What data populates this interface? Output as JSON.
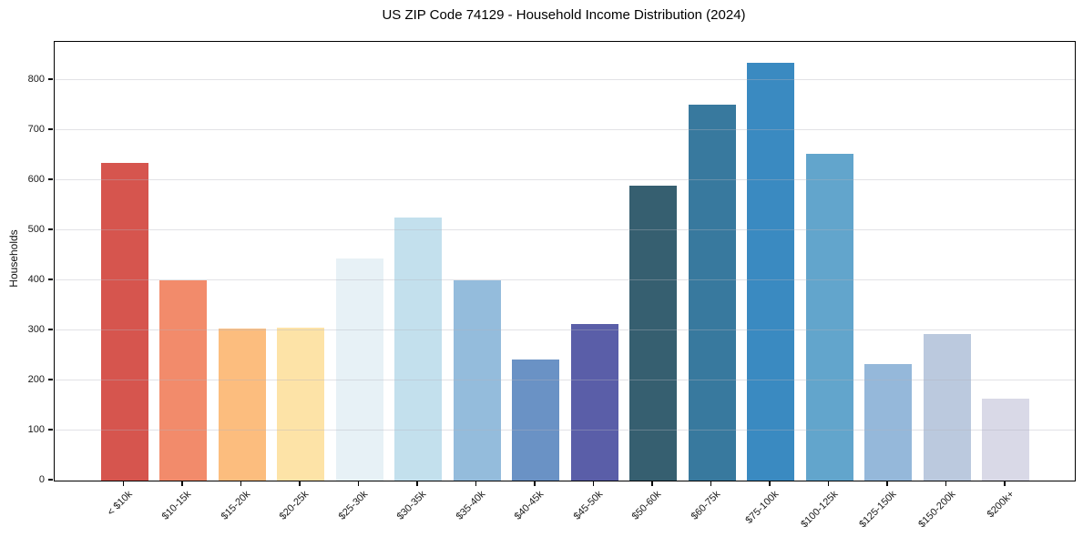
{
  "chart_data": {
    "type": "bar",
    "title": "US ZIP Code 74129 - Household Income Distribution (2024)",
    "xlabel": "",
    "ylabel": "Households",
    "categories": [
      "< $10k",
      "$10-15k",
      "$15-20k",
      "$20-25k",
      "$25-30k",
      "$30-35k",
      "$35-40k",
      "$40-45k",
      "$45-50k",
      "$50-60k",
      "$60-75k",
      "$75-100k",
      "$100-125k",
      "$125-150k",
      "$150-200k",
      "$200k+"
    ],
    "values": [
      635,
      400,
      303,
      305,
      443,
      525,
      400,
      241,
      313,
      589,
      751,
      834,
      653,
      232,
      292,
      163
    ],
    "bar_colors": [
      "#d6554e",
      "#f28b6b",
      "#fcbd7e",
      "#fde3a7",
      "#e7f1f6",
      "#c3e0ed",
      "#94bcdc",
      "#6a92c5",
      "#5a5ea8",
      "#365f70",
      "#38799e",
      "#3a8ac1",
      "#62a5cc",
      "#95b8da",
      "#bbc9de",
      "#d9d9e7"
    ],
    "ylim": [
      0,
      876
    ],
    "yticks": [
      0,
      100,
      200,
      300,
      400,
      500,
      600,
      700,
      800
    ],
    "grid": "horizontal",
    "grid_color": "#e9e9ec",
    "legend": "none",
    "background": "#ffffff"
  }
}
